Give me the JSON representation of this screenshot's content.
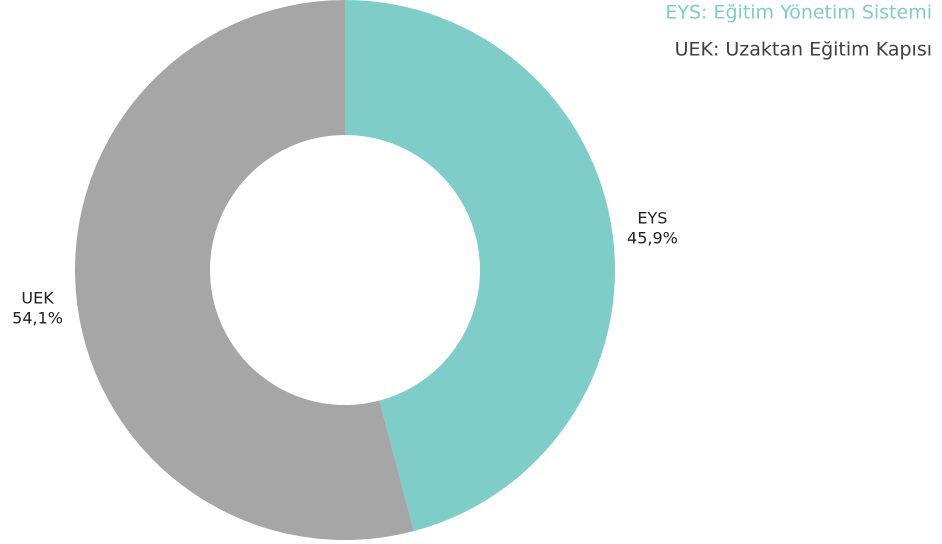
{
  "chart_data": {
    "type": "donut",
    "categories": [
      "EYS",
      "UEK"
    ],
    "values": [
      45.9,
      54.1
    ],
    "value_labels": [
      "45,9%",
      "54,1%"
    ],
    "colors": [
      "#7ecdc8",
      "#a6a6a6"
    ],
    "annotations": [
      {
        "text": "EYS: Eğitim Yönetim Sistemi",
        "color": "#7ecdc8"
      },
      {
        "text": "UEK: Uzaktan Eğitim Kapısı",
        "color": "#404040"
      }
    ]
  }
}
